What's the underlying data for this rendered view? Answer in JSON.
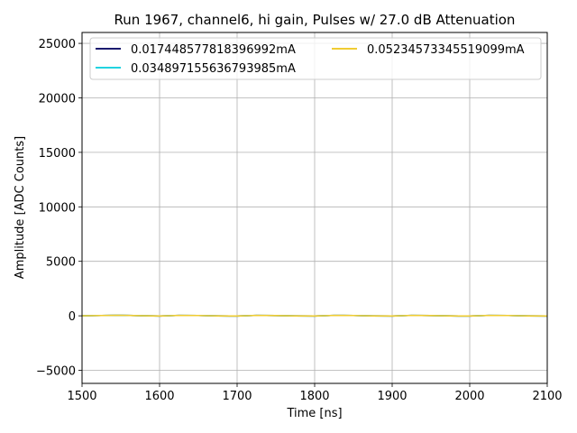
{
  "chart_data": {
    "type": "line",
    "title": "Run 1967, channel6, hi gain, Pulses w/ 27.0 dB Attenuation",
    "xlabel": "Time [ns]",
    "ylabel": "Amplitude [ADC Counts]",
    "xlim": [
      1500,
      2100
    ],
    "ylim": [
      -6200,
      26000
    ],
    "xticks": [
      1500,
      1600,
      1700,
      1800,
      1900,
      2000,
      2100
    ],
    "yticks": [
      -5000,
      0,
      5000,
      10000,
      15000,
      20000,
      25000
    ],
    "ytick_labels": [
      "−5000",
      "0",
      "5000",
      "10000",
      "15000",
      "20000",
      "25000"
    ],
    "grid": true,
    "legend": {
      "placement": "upper-left",
      "columns": 2
    },
    "colors": [
      "#1a1a6e",
      "#22d3e0",
      "#f0cc33"
    ],
    "series": [
      {
        "name": "0.017448577818396992mA",
        "x": [
          1500,
          1525,
          1550,
          1575,
          1600,
          1625,
          1650,
          1675,
          1700,
          1725,
          1750,
          1775,
          1800,
          1825,
          1850,
          1875,
          1900,
          1925,
          1950,
          1975,
          2000,
          2025,
          2050,
          2075,
          2100
        ],
        "values": [
          0,
          30,
          50,
          10,
          -20,
          40,
          30,
          -10,
          -20,
          40,
          20,
          -10,
          -20,
          40,
          30,
          -10,
          -20,
          40,
          20,
          -10,
          -20,
          40,
          30,
          -10,
          -20
        ]
      },
      {
        "name": "0.034897155636793985mA",
        "x": [
          1500,
          1525,
          1550,
          1575,
          1600,
          1625,
          1650,
          1675,
          1700,
          1725,
          1750,
          1775,
          1800,
          1825,
          1850,
          1875,
          1900,
          1925,
          1950,
          1975,
          2000,
          2025,
          2050,
          2075,
          2100
        ],
        "values": [
          0,
          30,
          50,
          10,
          -20,
          40,
          30,
          -10,
          -20,
          40,
          20,
          -10,
          -20,
          40,
          30,
          -10,
          -20,
          40,
          20,
          -10,
          -20,
          40,
          30,
          -10,
          -20
        ]
      },
      {
        "name": "0.05234573345519099mA",
        "x": [
          1500,
          1525,
          1550,
          1575,
          1600,
          1625,
          1650,
          1675,
          1700,
          1725,
          1750,
          1775,
          1800,
          1825,
          1850,
          1875,
          1900,
          1925,
          1950,
          1975,
          2000,
          2025,
          2050,
          2075,
          2100
        ],
        "values": [
          0,
          30,
          50,
          10,
          -20,
          40,
          30,
          -10,
          -20,
          40,
          20,
          -10,
          -20,
          40,
          30,
          -10,
          -20,
          40,
          20,
          -10,
          -20,
          40,
          30,
          -10,
          -20
        ]
      }
    ]
  }
}
